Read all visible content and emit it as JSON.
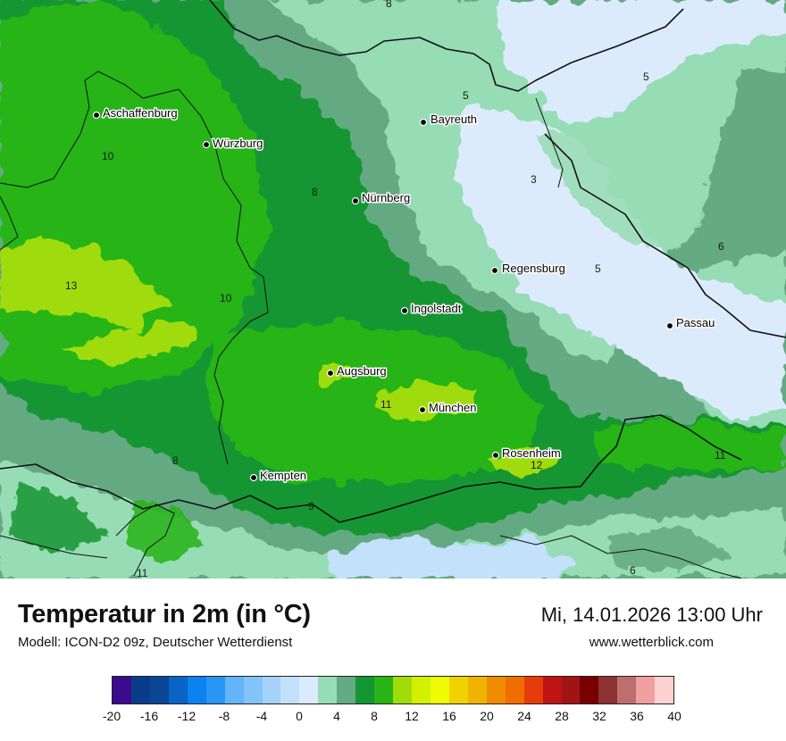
{
  "title": "Temperatur in 2m (in °C)",
  "model": "Modell: ICON-D2 09z, Deutscher Wetterdienst",
  "datetime": "Mi, 14.01.2026 13:00 Uhr",
  "website": "www.wetterblick.com",
  "cities": [
    {
      "name": "Aschaffenburg"
    },
    {
      "name": "Würzburg"
    },
    {
      "name": "Bayreuth"
    },
    {
      "name": "Nürnberg"
    },
    {
      "name": "Regensburg"
    },
    {
      "name": "Ingolstadt"
    },
    {
      "name": "Passau"
    },
    {
      "name": "Augsburg"
    },
    {
      "name": "München"
    },
    {
      "name": "Rosenheim"
    },
    {
      "name": "Kempten"
    }
  ],
  "isotherm_labels": [
    "8",
    "5",
    "5",
    "10",
    "3",
    "8",
    "6",
    "13",
    "10",
    "5",
    "11",
    "8",
    "12",
    "11",
    "9",
    "11",
    "6"
  ],
  "legend": {
    "ticks": [
      "-20",
      "-16",
      "-12",
      "-8",
      "-4",
      "0",
      "4",
      "8",
      "12",
      "16",
      "20",
      "24",
      "28",
      "32",
      "36",
      "40"
    ],
    "min": -20,
    "max": 40,
    "step": 2,
    "colors": [
      "#3c0a8c",
      "#0a3c8c",
      "#0a4696",
      "#0a64c8",
      "#0a82f0",
      "#2896f5",
      "#64b4fa",
      "#82c3fa",
      "#a5d2fa",
      "#c3e1fa",
      "#dcebfc",
      "#96dcb4",
      "#64aa82",
      "#149632",
      "#28b414",
      "#a0dc0a",
      "#d2f000",
      "#f0fa00",
      "#f0d200",
      "#f0b400",
      "#f08c00",
      "#f06e00",
      "#e63c0a",
      "#be1414",
      "#a01414",
      "#780000",
      "#8c3232",
      "#be6e6e",
      "#f0a0a0",
      "#ffd2d2"
    ]
  }
}
